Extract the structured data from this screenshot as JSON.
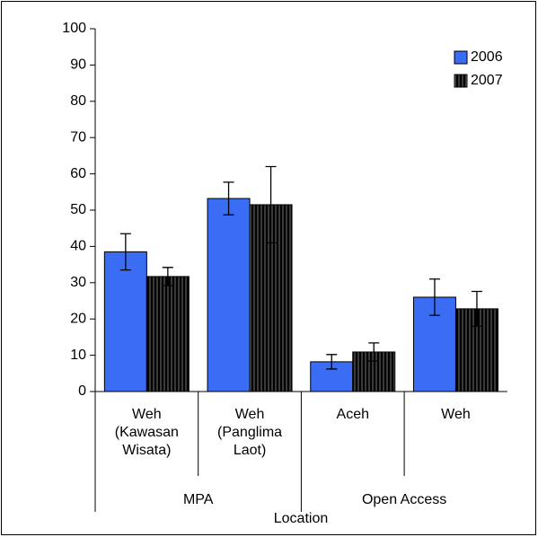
{
  "chart_data": {
    "type": "bar",
    "x_label": "Location",
    "groups": [
      {
        "name": "MPA",
        "categories": [
          "Weh (Kawasan Wisata)",
          "Weh (Panglima Laot)"
        ]
      },
      {
        "name": "Open Access",
        "categories": [
          "Aceh",
          "Weh"
        ]
      }
    ],
    "series": [
      {
        "name": "2006",
        "color": "#3a6cf4",
        "values": [
          38.5,
          53.2,
          8.2,
          26
        ],
        "errors": [
          5,
          4.5,
          2,
          5
        ]
      },
      {
        "name": "2007",
        "color": "#f9c6bd",
        "values": [
          31.7,
          51.5,
          10.9,
          22.8
        ],
        "errors": [
          2.5,
          10.5,
          2.5,
          4.8
        ]
      }
    ],
    "ylim": [
      0,
      100
    ],
    "yticks": [
      0,
      10,
      20,
      30,
      40,
      50,
      60,
      70,
      80,
      90,
      100
    ],
    "grid": false,
    "legend": "top-right"
  }
}
